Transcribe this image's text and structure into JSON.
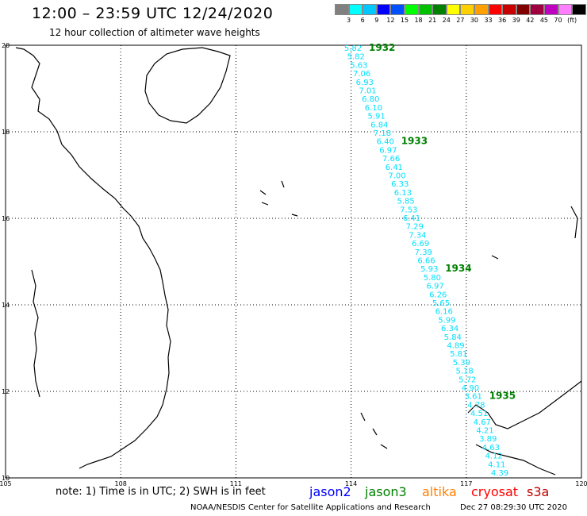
{
  "title": "12:00 – 23:59 UTC 12/24/2020",
  "subtitle": "12 hour collection of altimeter wave heights",
  "colorbar": {
    "colors": [
      "#808080",
      "#00ffff",
      "#00c8ff",
      "#0000ff",
      "#0050ff",
      "#00ff00",
      "#00c000",
      "#008000",
      "#ffff00",
      "#ffd000",
      "#ffa000",
      "#ff0000",
      "#c80000",
      "#800000",
      "#a00040",
      "#c000c0",
      "#ff80ff",
      "#000000"
    ],
    "labels": [
      "3",
      "6",
      "9",
      "12",
      "15",
      "18",
      "21",
      "24",
      "27",
      "30",
      "33",
      "36",
      "39",
      "42",
      "45",
      "70",
      "(ft)"
    ]
  },
  "axes": {
    "x_ticks": [
      "105",
      "108",
      "111",
      "114",
      "117",
      "120"
    ],
    "y_ticks": [
      "20",
      "18",
      "16",
      "14",
      "12",
      "10"
    ]
  },
  "track_color": "#00e0ff",
  "time_color": "#008000",
  "wave_heights": [
    "5.82",
    "5.82",
    "5.63",
    "7.06",
    "6.93",
    "7.01",
    "6.80",
    "6.10",
    "5.91",
    "6.84",
    "7.18",
    "6.40",
    "6.97",
    "7.66",
    "6.41",
    "7.00",
    "6.33",
    "6.13",
    "5.85",
    "7.53",
    "6.41",
    "7.29",
    "7.34",
    "6.69",
    "7.39",
    "6.66",
    "5.93",
    "5.80",
    "6.97",
    "6.26",
    "5.65",
    "6.16",
    "5.99",
    "6.34",
    "5.84",
    "4.89",
    "5.81",
    "5.39",
    "5.18",
    "5.72",
    "4.90",
    "3.61",
    "4.78",
    "4.51",
    "4.67",
    "4.21",
    "3.89",
    "4.63",
    "4.12",
    "4.11",
    "4.39"
  ],
  "time_labels": [
    {
      "text": "1932",
      "index": 0
    },
    {
      "text": "1933",
      "index": 11
    },
    {
      "text": "1934",
      "index": 26
    },
    {
      "text": "1935",
      "index": 41
    }
  ],
  "footer": {
    "note": "note: 1) Time is in UTC; 2) SWH is in feet",
    "satellites": [
      {
        "name": "jason2",
        "color": "#0000ff"
      },
      {
        "name": "jason3",
        "color": "#008000"
      },
      {
        "name": "altika",
        "color": "#ff8000"
      },
      {
        "name": "cryosat",
        "color": "#ff0000"
      },
      {
        "name": "s3a",
        "color": "#c00000"
      }
    ],
    "credit": "NOAA/NESDIS Center for Satellite Applications and Research",
    "timestamp": "Dec 27 08:29:30 UTC 2020"
  }
}
